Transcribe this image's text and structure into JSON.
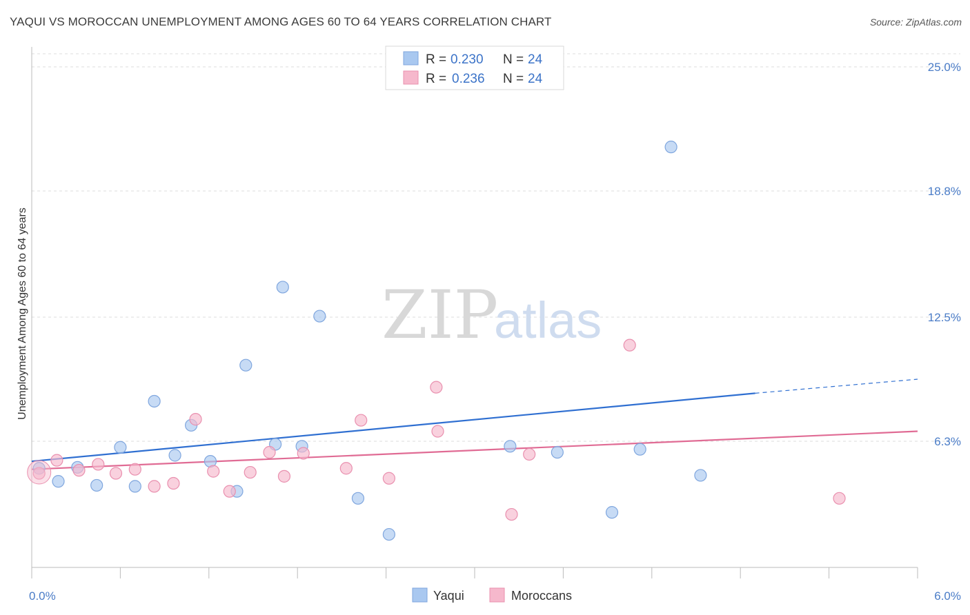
{
  "title": "YAQUI VS MOROCCAN UNEMPLOYMENT AMONG AGES 60 TO 64 YEARS CORRELATION CHART",
  "source": "Source: ZipAtlas.com",
  "watermark": {
    "zip": "ZIP",
    "atlas": "atlas"
  },
  "legend": {
    "rows": [
      {
        "r_label": "R =",
        "r_value": "0.230",
        "n_label": "N =",
        "n_value": "24",
        "color": "#a9c8f0"
      },
      {
        "r_label": "R =",
        "r_value": "0.236",
        "n_label": "N =",
        "n_value": "24",
        "color": "#f6b8cc"
      }
    ]
  },
  "bottom_legend": [
    {
      "label": "Yaqui",
      "color": "#a9c8f0"
    },
    {
      "label": "Moroccans",
      "color": "#f6b8cc"
    }
  ],
  "chart_data": {
    "type": "scatter",
    "title": "YAQUI VS MOROCCAN UNEMPLOYMENT AMONG AGES 60 TO 64 YEARS CORRELATION CHART",
    "xlabel": "",
    "ylabel": "Unemployment Among Ages 60 to 64 years",
    "xlim": [
      0,
      6
    ],
    "ylim": [
      0,
      25
    ],
    "x_tick_labels": [
      {
        "value": 0,
        "label": "0.0%"
      },
      {
        "value": 6,
        "label": "6.0%"
      }
    ],
    "y_tick_labels": [
      {
        "value": 6.3,
        "label": "6.3%"
      },
      {
        "value": 12.5,
        "label": "12.5%"
      },
      {
        "value": 18.8,
        "label": "18.8%"
      },
      {
        "value": 25.0,
        "label": "25.0%"
      }
    ],
    "grid": true,
    "legend_position": "top-center",
    "series": [
      {
        "name": "Yaqui",
        "color": "#a9c8f0",
        "stroke": "#7fa6de",
        "trend_color": "#2f6fd1",
        "trend": {
          "x0": 0,
          "y0": 5.3,
          "x1": 4.9,
          "y1": 8.7,
          "x_dash_end": 6.0,
          "y_dash_end": 9.4
        },
        "points": [
          [
            0.05,
            4.95
          ],
          [
            0.18,
            4.3
          ],
          [
            0.31,
            5.0
          ],
          [
            0.44,
            4.1
          ],
          [
            0.6,
            6.0
          ],
          [
            0.7,
            4.05
          ],
          [
            0.83,
            8.3
          ],
          [
            0.97,
            5.6
          ],
          [
            1.08,
            7.1
          ],
          [
            1.21,
            5.3
          ],
          [
            1.39,
            3.8
          ],
          [
            1.45,
            10.1
          ],
          [
            1.65,
            6.15
          ],
          [
            1.7,
            14.0
          ],
          [
            1.83,
            6.05
          ],
          [
            1.95,
            12.55
          ],
          [
            2.21,
            3.45
          ],
          [
            2.42,
            1.65
          ],
          [
            3.24,
            6.05
          ],
          [
            3.56,
            5.75
          ],
          [
            3.93,
            2.75
          ],
          [
            4.12,
            5.9
          ],
          [
            4.33,
            21.0
          ],
          [
            4.53,
            4.6
          ]
        ]
      },
      {
        "name": "Moroccans",
        "color": "#f6b8cc",
        "stroke": "#e98fae",
        "trend_color": "#e06b94",
        "trend": {
          "x0": 0,
          "y0": 4.9,
          "x1": 6.0,
          "y1": 6.8
        },
        "points": [
          [
            0.05,
            4.7
          ],
          [
            0.17,
            5.35
          ],
          [
            0.32,
            4.85
          ],
          [
            0.45,
            5.15
          ],
          [
            0.57,
            4.7
          ],
          [
            0.7,
            4.9
          ],
          [
            0.83,
            4.05
          ],
          [
            0.96,
            4.2
          ],
          [
            1.11,
            7.4
          ],
          [
            1.23,
            4.8
          ],
          [
            1.34,
            3.8
          ],
          [
            1.48,
            4.75
          ],
          [
            1.61,
            5.75
          ],
          [
            1.71,
            4.55
          ],
          [
            1.84,
            5.7
          ],
          [
            2.13,
            4.95
          ],
          [
            2.23,
            7.35
          ],
          [
            2.42,
            4.45
          ],
          [
            2.75,
            6.8
          ],
          [
            2.74,
            9.0
          ],
          [
            3.25,
            2.65
          ],
          [
            3.37,
            5.65
          ],
          [
            4.05,
            11.1
          ],
          [
            5.47,
            3.45
          ]
        ]
      }
    ]
  }
}
